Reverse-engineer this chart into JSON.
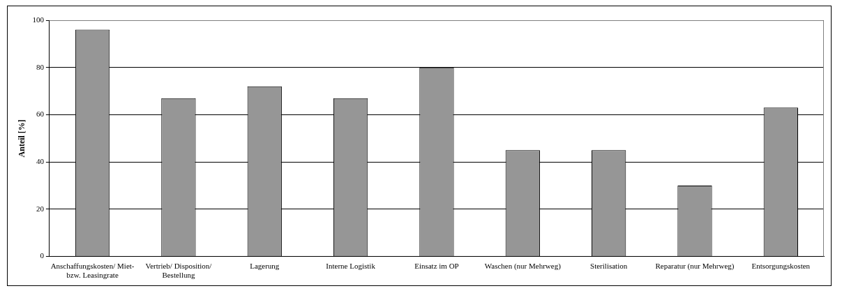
{
  "chart_data": {
    "type": "bar",
    "ylabel": "Anteil [%]",
    "categories": [
      "Anschaffungskosten/ Miet- bzw. Leasingrate",
      "Vertrieb/ Disposition/ Bestellung",
      "Lagerung",
      "Interne Logistik",
      "Einsatz im OP",
      "Waschen (nur Mehrweg)",
      "Sterilisation",
      "Reparatur (nur Mehrweg)",
      "Entsorgungskosten"
    ],
    "values": [
      96,
      67,
      72,
      67,
      80,
      45,
      45,
      30,
      63
    ],
    "color": "#969696",
    "ylim": [
      0,
      100
    ],
    "yticks": [
      0,
      20,
      40,
      60,
      80,
      100
    ],
    "grid": "y",
    "legend": false
  }
}
